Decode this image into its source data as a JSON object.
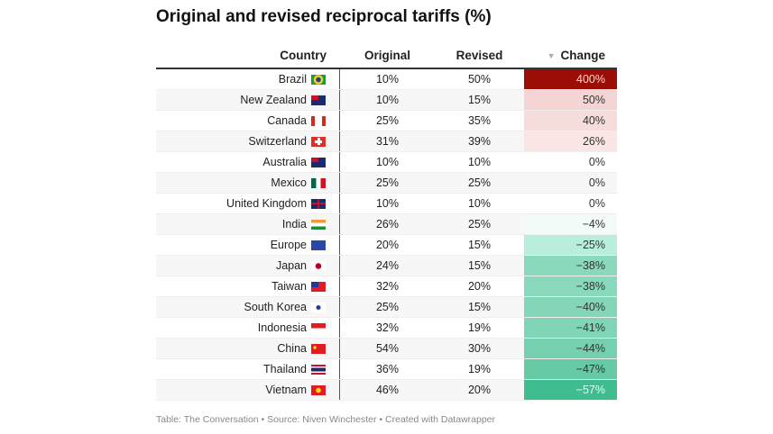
{
  "title": "Original and revised reciprocal tariffs (%)",
  "headers": {
    "country": "Country",
    "original": "Original",
    "revised": "Revised",
    "change": "Change",
    "sort_icon": "▼"
  },
  "rows": [
    {
      "country": "Brazil",
      "flag": "brazil-flag-icon",
      "original": "10%",
      "revised": "50%",
      "change": "400%",
      "color": "#9a0e05",
      "text_color": "#f8d8d4"
    },
    {
      "country": "New Zealand",
      "flag": "new-zealand-flag-icon",
      "original": "10%",
      "revised": "15%",
      "change": "50%",
      "color": "#f4d5d4",
      "text_color": "#333"
    },
    {
      "country": "Canada",
      "flag": "canada-flag-icon",
      "original": "25%",
      "revised": "35%",
      "change": "40%",
      "color": "#f6dcdb",
      "text_color": "#333"
    },
    {
      "country": "Switzerland",
      "flag": "switzerland-flag-icon",
      "original": "31%",
      "revised": "39%",
      "change": "26%",
      "color": "#f9e6e5",
      "text_color": "#333"
    },
    {
      "country": "Australia",
      "flag": "australia-flag-icon",
      "original": "10%",
      "revised": "10%",
      "change": "0%",
      "color": "#ffffff",
      "text_color": "#333"
    },
    {
      "country": "Mexico",
      "flag": "mexico-flag-icon",
      "original": "25%",
      "revised": "25%",
      "change": "0%",
      "color": "#f7f7f7",
      "text_color": "#333"
    },
    {
      "country": "United Kingdom",
      "flag": "united-kingdom-flag-icon",
      "original": "10%",
      "revised": "10%",
      "change": "0%",
      "color": "#ffffff",
      "text_color": "#333"
    },
    {
      "country": "India",
      "flag": "india-flag-icon",
      "original": "26%",
      "revised": "25%",
      "change": "−4%",
      "color": "#f3fbf8",
      "text_color": "#333"
    },
    {
      "country": "Europe",
      "flag": "eu-flag-icon",
      "original": "20%",
      "revised": "15%",
      "change": "−25%",
      "color": "#b8eedb",
      "text_color": "#333"
    },
    {
      "country": "Japan",
      "flag": "japan-flag-icon",
      "original": "24%",
      "revised": "15%",
      "change": "−38%",
      "color": "#8ad9bd",
      "text_color": "#333"
    },
    {
      "country": "Taiwan",
      "flag": "taiwan-flag-icon",
      "original": "32%",
      "revised": "20%",
      "change": "−38%",
      "color": "#8ad9bd",
      "text_color": "#333"
    },
    {
      "country": "South Korea",
      "flag": "south-korea-flag-icon",
      "original": "25%",
      "revised": "15%",
      "change": "−40%",
      "color": "#83d6b8",
      "text_color": "#333"
    },
    {
      "country": "Indonesia",
      "flag": "indonesia-flag-icon",
      "original": "32%",
      "revised": "19%",
      "change": "−41%",
      "color": "#80d5b6",
      "text_color": "#333"
    },
    {
      "country": "China",
      "flag": "china-flag-icon",
      "original": "54%",
      "revised": "30%",
      "change": "−44%",
      "color": "#74d0ae",
      "text_color": "#333"
    },
    {
      "country": "Thailand",
      "flag": "thailand-flag-icon",
      "original": "36%",
      "revised": "19%",
      "change": "−47%",
      "color": "#66cba5",
      "text_color": "#333"
    },
    {
      "country": "Vietnam",
      "flag": "vietnam-flag-icon",
      "original": "46%",
      "revised": "20%",
      "change": "−57%",
      "color": "#3fbd8f",
      "text_color": "#e8fff5"
    }
  ],
  "footer": "Table: The Conversation • Source: Niven Winchester • Created with Datawrapper"
}
